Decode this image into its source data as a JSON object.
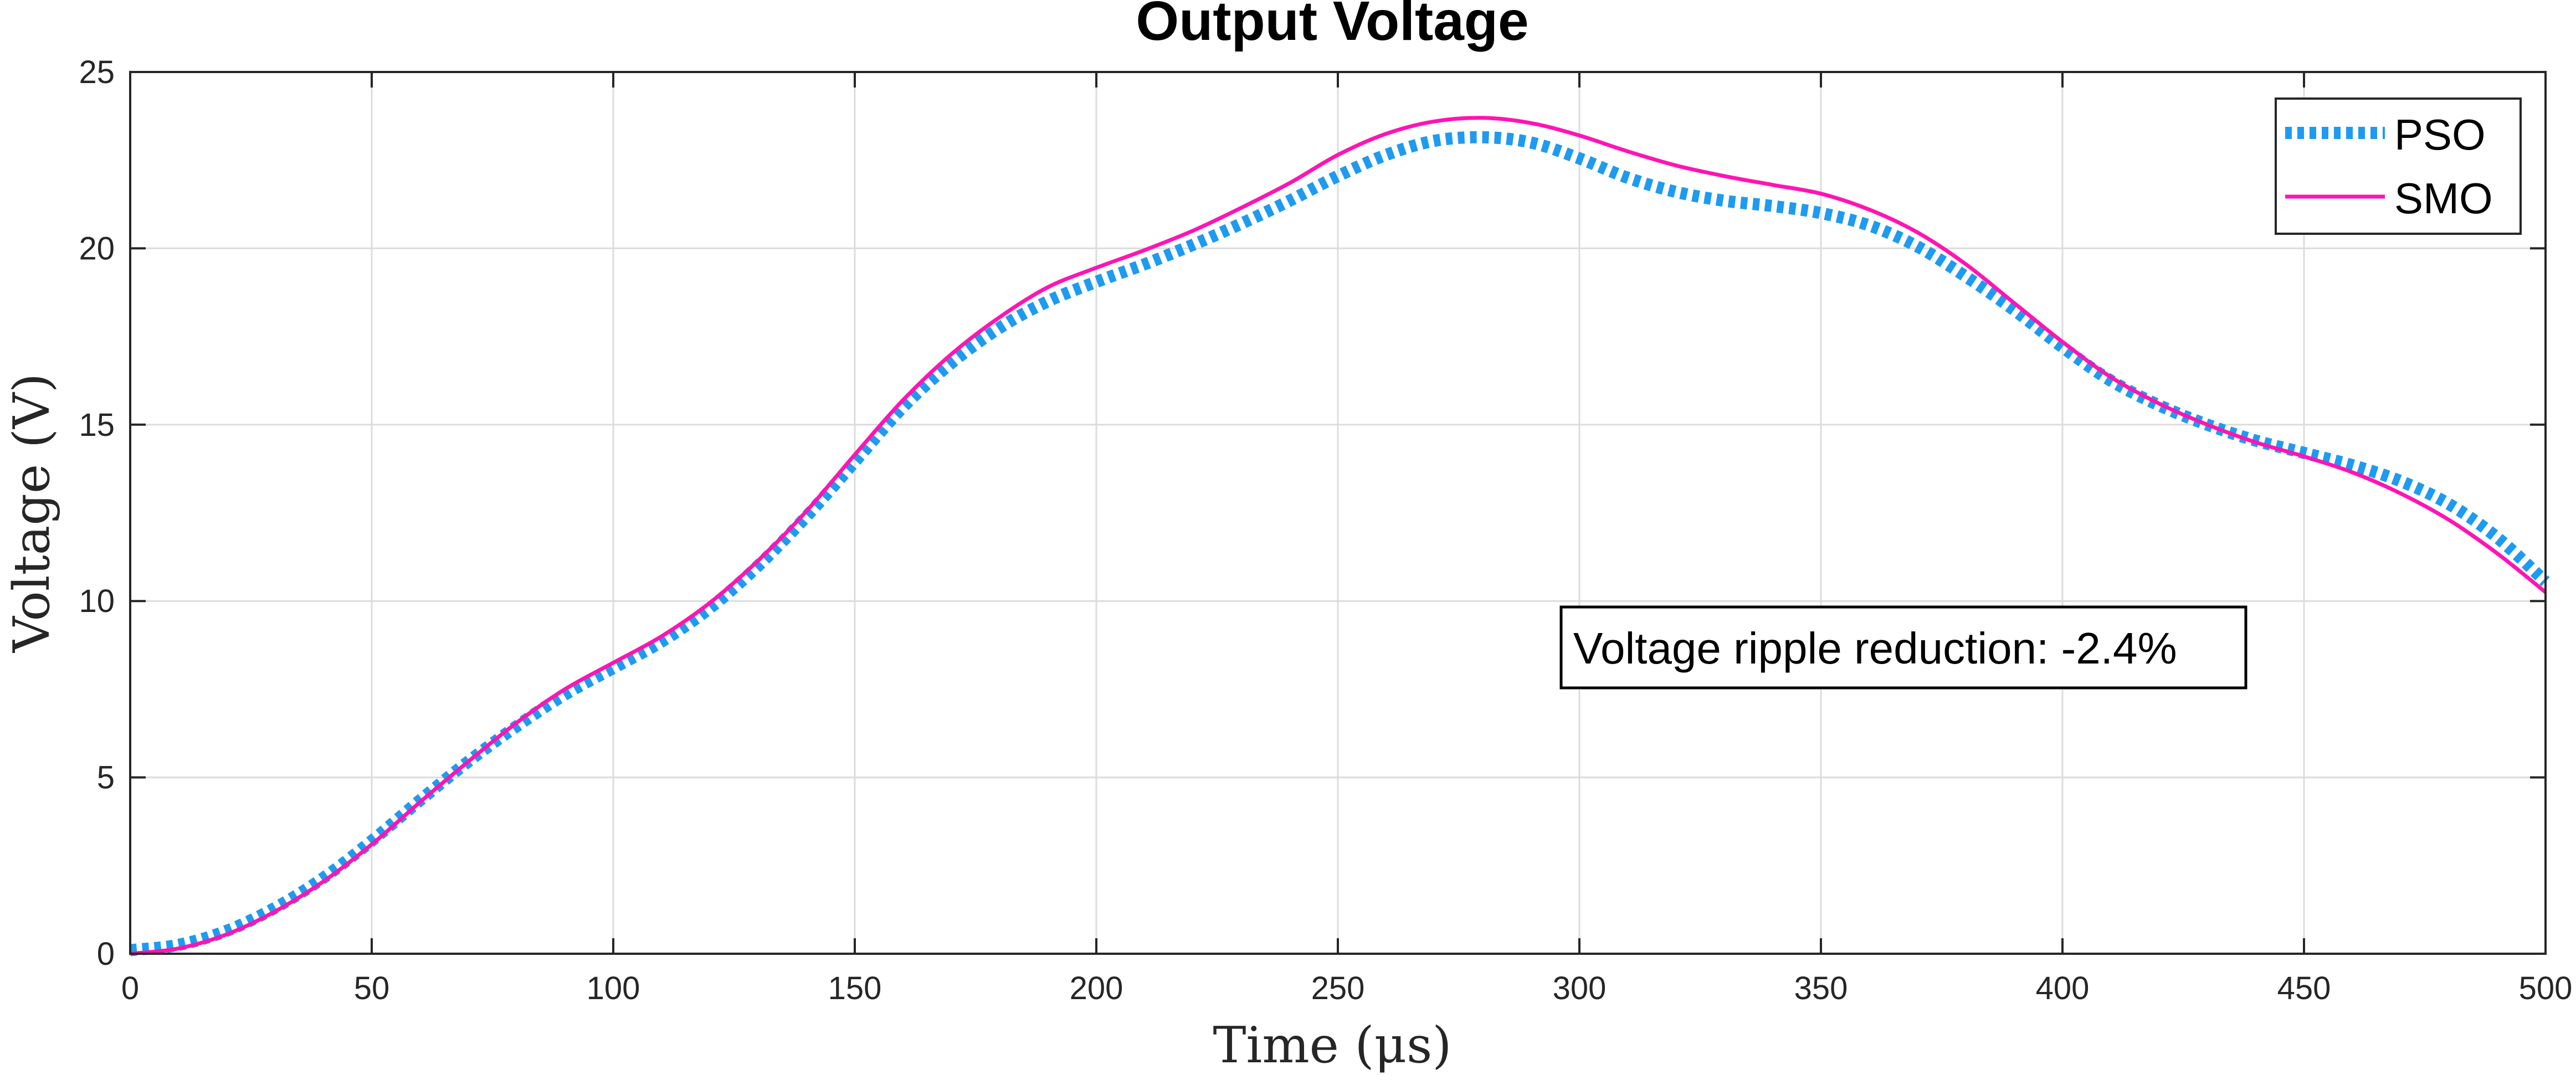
{
  "chart_data": {
    "type": "line",
    "title": "Output Voltage",
    "xlabel": "Time (μs)",
    "ylabel": "Voltage (V)",
    "xlim": [
      0,
      500
    ],
    "ylim": [
      0,
      25
    ],
    "grid": true,
    "xticks": [
      0,
      50,
      100,
      150,
      200,
      250,
      300,
      350,
      400,
      450,
      500
    ],
    "yticks": [
      0,
      5,
      10,
      15,
      20,
      25
    ],
    "legend_position": "top-right",
    "annotation": "Voltage ripple reduction: -2.4%",
    "series": [
      {
        "name": "PSO",
        "color": "#1e9bf0",
        "style": "dotted",
        "x": [
          0,
          10,
          20,
          30,
          40,
          50,
          60,
          70,
          80,
          90,
          100,
          110,
          120,
          130,
          140,
          150,
          160,
          170,
          180,
          190,
          200,
          210,
          220,
          230,
          240,
          250,
          260,
          270,
          280,
          290,
          300,
          310,
          320,
          330,
          340,
          350,
          360,
          370,
          380,
          390,
          400,
          410,
          420,
          430,
          440,
          450,
          460,
          470,
          480,
          490,
          500
        ],
        "y": [
          0.1,
          0.25,
          0.65,
          1.3,
          2.15,
          3.2,
          4.35,
          5.45,
          6.45,
          7.35,
          8.1,
          8.85,
          9.8,
          11.0,
          12.4,
          13.95,
          15.5,
          16.75,
          17.75,
          18.5,
          19.05,
          19.55,
          20.1,
          20.7,
          21.35,
          22.05,
          22.65,
          23.05,
          23.15,
          23.0,
          22.55,
          22.0,
          21.6,
          21.35,
          21.2,
          21.0,
          20.65,
          20.05,
          19.2,
          18.25,
          17.2,
          16.25,
          15.55,
          15.0,
          14.55,
          14.2,
          13.85,
          13.4,
          12.75,
          11.8,
          10.55
        ]
      },
      {
        "name": "SMO",
        "color": "#ff14b4",
        "style": "solid",
        "x": [
          0,
          10,
          20,
          30,
          40,
          50,
          60,
          70,
          80,
          90,
          100,
          110,
          120,
          130,
          140,
          150,
          160,
          170,
          180,
          190,
          200,
          210,
          220,
          230,
          240,
          250,
          260,
          270,
          280,
          290,
          300,
          310,
          320,
          330,
          340,
          350,
          360,
          370,
          380,
          390,
          400,
          410,
          420,
          430,
          440,
          450,
          460,
          470,
          480,
          490,
          500
        ],
        "y": [
          0.0,
          0.15,
          0.55,
          1.2,
          2.05,
          3.1,
          4.3,
          5.45,
          6.55,
          7.5,
          8.25,
          9.0,
          9.95,
          11.15,
          12.55,
          14.15,
          15.7,
          17.0,
          18.05,
          18.9,
          19.45,
          19.95,
          20.5,
          21.15,
          21.85,
          22.65,
          23.25,
          23.6,
          23.7,
          23.55,
          23.2,
          22.75,
          22.35,
          22.05,
          21.8,
          21.55,
          21.1,
          20.45,
          19.55,
          18.45,
          17.35,
          16.35,
          15.6,
          15.0,
          14.5,
          14.1,
          13.65,
          13.05,
          12.3,
          11.35,
          10.25
        ]
      }
    ]
  }
}
